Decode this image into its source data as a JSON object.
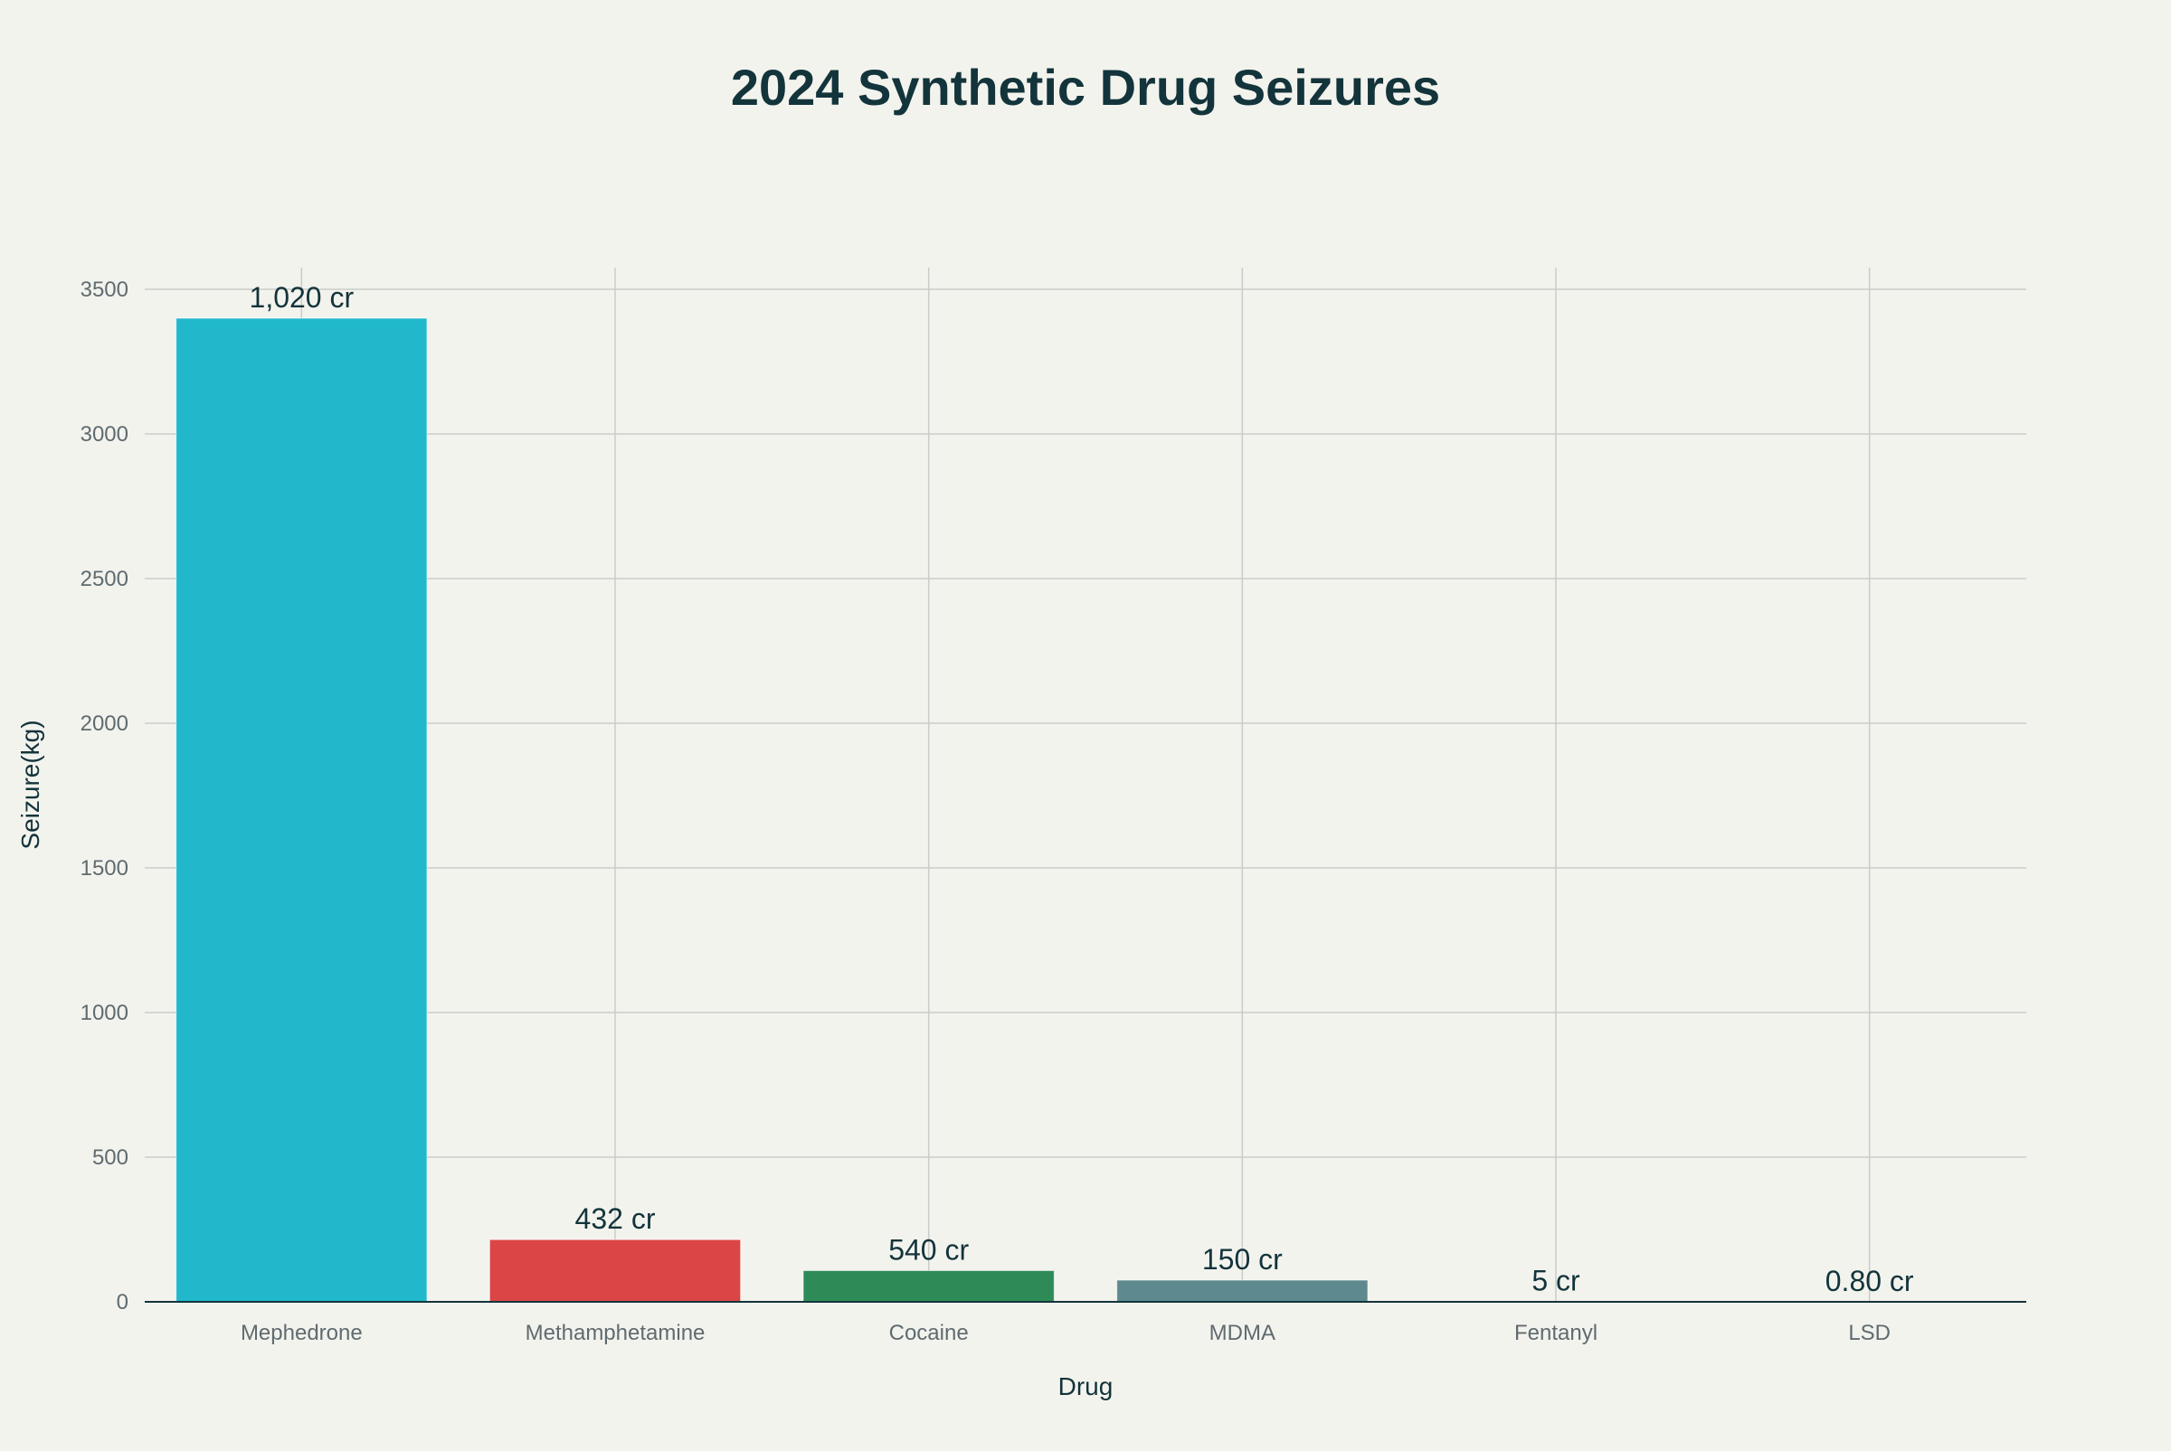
{
  "chart_data": {
    "type": "bar",
    "title": "2024 Synthetic Drug Seizures",
    "xlabel": "Drug",
    "ylabel": "Seizure(kg)",
    "categories": [
      "Mephedrone",
      "Methamphetamine",
      "Cocaine",
      "MDMA",
      "Fentanyl",
      "LSD"
    ],
    "values": [
      3400,
      215,
      108,
      75,
      1,
      0.2
    ],
    "data_labels": [
      "1,020 cr",
      "432 cr",
      "540 cr",
      "150 cr",
      "5 cr",
      "0.80 cr"
    ],
    "colors": [
      "#21b8cc",
      "#db4545",
      "#2e8b57",
      "#5e8a8f",
      "#d2ba4c",
      "#b4413c"
    ],
    "ylim": [
      0,
      3500
    ],
    "yticks": [
      0,
      500,
      1000,
      1500,
      2000,
      2500,
      3000,
      3500
    ],
    "ytick_labels": [
      "0",
      "500",
      "1000",
      "1500",
      "2000",
      "2500",
      "3000",
      "3500"
    ],
    "grid": true,
    "legend": "none"
  }
}
